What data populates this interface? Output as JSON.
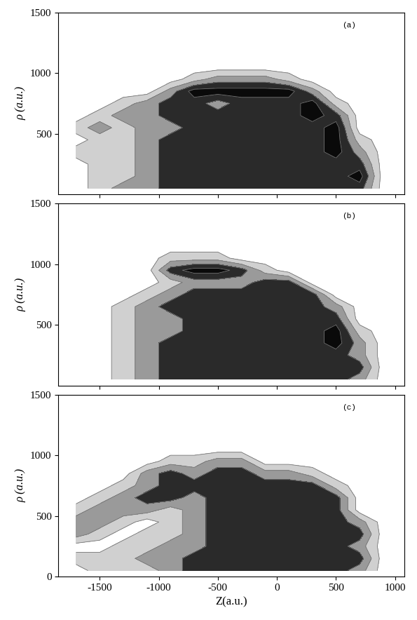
{
  "chart_data": [
    {
      "type": "contour",
      "annotation": "(a)",
      "y_label": "ρ (a.u.)",
      "tick_labels": "y",
      "xlim": [
        -1850,
        1080
      ],
      "xticks": [
        -1500,
        -1000,
        -500,
        0,
        500,
        1000
      ],
      "ylim": [
        0,
        1500
      ],
      "yticks": [
        500,
        1000,
        1500
      ],
      "levels": [
        0.5,
        1.5,
        2.5,
        3.5,
        4.5
      ],
      "colors": [
        "#d0d0d0",
        "#9a9a9a",
        "#2a2a2a",
        "#0a0a0a"
      ],
      "x": [
        -1700,
        -1500,
        -1300,
        -1100,
        -900,
        -700,
        -500,
        -300,
        -100,
        100,
        300,
        500,
        700,
        900
      ],
      "y": [
        50,
        150,
        250,
        350,
        450,
        550,
        650,
        750,
        850,
        950,
        1050,
        1150,
        1250,
        1350,
        1450
      ],
      "cells": [
        [
          0,
          1,
          2,
          2,
          3,
          3,
          3,
          3,
          3,
          3,
          3,
          3,
          3,
          0
        ],
        [
          0,
          1,
          1,
          2,
          3,
          3,
          3,
          3,
          3,
          3,
          3,
          3,
          4,
          0
        ],
        [
          0,
          1,
          1,
          2,
          3,
          3,
          3,
          3,
          3,
          3,
          3,
          3,
          3,
          0
        ],
        [
          1,
          1,
          1,
          2,
          3,
          3,
          3,
          3,
          3,
          3,
          3,
          4,
          2,
          0
        ],
        [
          0,
          1,
          1,
          2,
          3,
          3,
          3,
          3,
          3,
          3,
          3,
          4,
          1,
          0
        ],
        [
          1,
          2,
          1,
          2,
          2,
          3,
          3,
          3,
          3,
          3,
          3,
          4,
          0,
          0
        ],
        [
          0,
          1,
          2,
          2,
          3,
          3,
          3,
          3,
          3,
          3,
          4,
          3,
          0,
          0
        ],
        [
          0,
          0,
          1,
          2,
          3,
          3,
          2,
          3,
          3,
          3,
          4,
          1,
          0,
          0
        ],
        [
          0,
          0,
          0,
          0,
          2,
          4,
          4,
          4,
          4,
          4,
          2,
          0,
          0,
          0
        ],
        [
          0,
          0,
          0,
          0,
          0,
          1,
          2,
          2,
          2,
          1,
          0,
          0,
          0,
          0
        ],
        [
          0,
          0,
          0,
          0,
          0,
          0,
          0,
          0,
          0,
          0,
          0,
          0,
          0,
          0
        ],
        [
          0,
          0,
          0,
          0,
          0,
          0,
          0,
          0,
          0,
          0,
          0,
          0,
          0,
          0
        ],
        [
          0,
          0,
          0,
          0,
          0,
          0,
          0,
          0,
          0,
          0,
          0,
          0,
          0,
          0
        ],
        [
          0,
          0,
          0,
          0,
          0,
          0,
          0,
          0,
          0,
          0,
          0,
          0,
          0,
          0
        ],
        [
          0,
          0,
          0,
          0,
          0,
          0,
          0,
          0,
          0,
          0,
          0,
          0,
          0,
          0
        ]
      ]
    },
    {
      "type": "contour",
      "annotation": "(b)",
      "y_label": "ρ (a.u.)",
      "tick_labels": "y",
      "xlim": [
        -1850,
        1080
      ],
      "xticks": [
        -1500,
        -1000,
        -500,
        0,
        500,
        1000
      ],
      "ylim": [
        0,
        1500
      ],
      "yticks": [
        500,
        1000,
        1500
      ],
      "levels": [
        0.5,
        1.5,
        2.5,
        3.5,
        4.5
      ],
      "colors": [
        "#d0d0d0",
        "#9a9a9a",
        "#2a2a2a",
        "#0a0a0a"
      ],
      "x": [
        -1700,
        -1500,
        -1300,
        -1100,
        -900,
        -700,
        -500,
        -300,
        -100,
        100,
        300,
        500,
        700,
        900
      ],
      "y": [
        50,
        150,
        250,
        350,
        450,
        550,
        650,
        750,
        850,
        950,
        1050,
        1150,
        1250,
        1350,
        1450
      ],
      "cells": [
        [
          0,
          0,
          1,
          2,
          3,
          3,
          3,
          3,
          3,
          3,
          3,
          3,
          2,
          0
        ],
        [
          0,
          0,
          1,
          2,
          3,
          3,
          3,
          3,
          3,
          3,
          3,
          3,
          3,
          0
        ],
        [
          0,
          0,
          1,
          2,
          3,
          3,
          3,
          3,
          3,
          3,
          3,
          3,
          2,
          0
        ],
        [
          0,
          0,
          1,
          2,
          3,
          3,
          3,
          3,
          3,
          3,
          3,
          4,
          2,
          0
        ],
        [
          0,
          0,
          1,
          2,
          2,
          3,
          3,
          3,
          3,
          3,
          3,
          4,
          1,
          0
        ],
        [
          0,
          0,
          1,
          2,
          2,
          3,
          3,
          3,
          3,
          3,
          3,
          3,
          0,
          0
        ],
        [
          0,
          0,
          1,
          2,
          3,
          3,
          3,
          3,
          3,
          3,
          3,
          2,
          0,
          0
        ],
        [
          0,
          0,
          0,
          1,
          2,
          3,
          3,
          3,
          3,
          3,
          3,
          0,
          0,
          0
        ],
        [
          0,
          0,
          0,
          0,
          1,
          2,
          2,
          2,
          3,
          3,
          0,
          0,
          0,
          0
        ],
        [
          0,
          0,
          0,
          0,
          3,
          4,
          4,
          3,
          1,
          0,
          0,
          0,
          0,
          0
        ],
        [
          0,
          0,
          0,
          0,
          1,
          1,
          1,
          0,
          0,
          0,
          0,
          0,
          0,
          0
        ],
        [
          0,
          0,
          0,
          0,
          0,
          0,
          0,
          0,
          0,
          0,
          0,
          0,
          0,
          0
        ],
        [
          0,
          0,
          0,
          0,
          0,
          0,
          0,
          0,
          0,
          0,
          0,
          0,
          0,
          0
        ],
        [
          0,
          0,
          0,
          0,
          0,
          0,
          0,
          0,
          0,
          0,
          0,
          0,
          0,
          0
        ],
        [
          0,
          0,
          0,
          0,
          0,
          0,
          0,
          0,
          0,
          0,
          0,
          0,
          0,
          0
        ]
      ]
    },
    {
      "type": "contour",
      "annotation": "(c)",
      "y_label": "ρ (a.u.)",
      "x_label": "Z(a.u.)",
      "xlim": [
        -1850,
        1080
      ],
      "xticks": [
        -1500,
        -1000,
        -500,
        0,
        500,
        1000
      ],
      "ylim": [
        0,
        1500
      ],
      "yticks": [
        0,
        500,
        1000,
        1500
      ],
      "levels": [
        0.5,
        1.5,
        2.5,
        3.5,
        4.5
      ],
      "colors": [
        "#d0d0d0",
        "#9a9a9a",
        "#2a2a2a",
        "#0a0a0a"
      ],
      "x": [
        -1700,
        -1500,
        -1300,
        -1100,
        -900,
        -700,
        -500,
        -300,
        -100,
        100,
        300,
        500,
        700,
        900
      ],
      "y": [
        50,
        150,
        250,
        350,
        450,
        550,
        650,
        750,
        850,
        950,
        1050,
        1150,
        1250,
        1350,
        1450
      ],
      "cells": [
        [
          0,
          1,
          1,
          1,
          2,
          3,
          3,
          3,
          3,
          3,
          3,
          3,
          2,
          0
        ],
        [
          1,
          1,
          1,
          2,
          2,
          3,
          3,
          3,
          3,
          3,
          3,
          3,
          3,
          0
        ],
        [
          0,
          0,
          1,
          1,
          2,
          2,
          3,
          3,
          3,
          3,
          3,
          3,
          2,
          0
        ],
        [
          2,
          1,
          0,
          1,
          1,
          2,
          3,
          3,
          3,
          3,
          3,
          3,
          3,
          0
        ],
        [
          2,
          2,
          1,
          0,
          1,
          2,
          3,
          3,
          3,
          3,
          3,
          3,
          2,
          0
        ],
        [
          1,
          2,
          2,
          2,
          1,
          2,
          3,
          3,
          3,
          3,
          3,
          3,
          0,
          0
        ],
        [
          0,
          1,
          2,
          3,
          3,
          2,
          3,
          3,
          3,
          3,
          3,
          3,
          0,
          0
        ],
        [
          0,
          0,
          1,
          2,
          3,
          3,
          3,
          3,
          3,
          3,
          3,
          1,
          0,
          0
        ],
        [
          0,
          0,
          0,
          2,
          3,
          2,
          3,
          3,
          2,
          2,
          1,
          0,
          0,
          0
        ],
        [
          0,
          0,
          0,
          0,
          1,
          1,
          2,
          2,
          0,
          0,
          0,
          0,
          0,
          0
        ],
        [
          0,
          0,
          0,
          0,
          0,
          0,
          0,
          0,
          0,
          0,
          0,
          0,
          0,
          0
        ],
        [
          0,
          0,
          0,
          0,
          0,
          0,
          0,
          0,
          0,
          0,
          0,
          0,
          0,
          0
        ],
        [
          0,
          0,
          0,
          0,
          0,
          0,
          0,
          0,
          0,
          0,
          0,
          0,
          0,
          0
        ],
        [
          0,
          0,
          0,
          0,
          0,
          0,
          0,
          0,
          0,
          0,
          0,
          0,
          0,
          0
        ],
        [
          0,
          0,
          0,
          0,
          0,
          0,
          0,
          0,
          0,
          0,
          0,
          0,
          0,
          0
        ]
      ]
    }
  ]
}
